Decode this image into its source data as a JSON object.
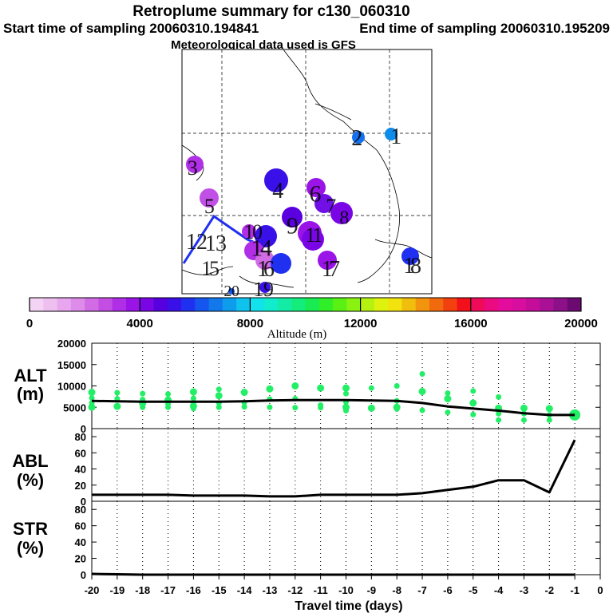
{
  "header": {
    "title": "Retroplume summary for c130_060310",
    "start_label": "Start time of sampling 20060310.194841",
    "end_label": "End time of sampling 20060310.195209",
    "met_label": "Meteorological data used is GFS"
  },
  "colorbar": {
    "colors": [
      "#f4d4f4",
      "#eec0f0",
      "#e7a6ee",
      "#de8ce9",
      "#d26ce5",
      "#c44ee3",
      "#b02ee5",
      "#9a14e8",
      "#7a06e6",
      "#5600e0",
      "#3a10e8",
      "#2030f0",
      "#1456ee",
      "#1278ec",
      "#0e9cec",
      "#10c2ee",
      "#12e2ec",
      "#10eccc",
      "#12eca6",
      "#14ec7c",
      "#18ec52",
      "#30ee28",
      "#5af014",
      "#8af210",
      "#b6f210",
      "#def20e",
      "#f2e20e",
      "#f2be0e",
      "#f2940e",
      "#f26a0e",
      "#f2400e",
      "#f2101a",
      "#f00a5a",
      "#ec0a80",
      "#e40c9c",
      "#d80e9e",
      "#c40e9a",
      "#aa1096",
      "#8c1088",
      "#6c0a72"
    ],
    "ticks": [
      "0",
      "4000",
      "8000",
      "12000",
      "16000",
      "20000"
    ],
    "label": "Altitude (m)"
  },
  "map": {
    "cluster_labels": [
      "1",
      "2",
      "3",
      "4",
      "5",
      "6",
      "7",
      "8",
      "9",
      "10",
      "11",
      "12",
      "13",
      "14",
      "15",
      "16",
      "17",
      "18",
      "19",
      "20"
    ],
    "points": [
      {
        "label": "8",
        "color": "#0e8cec"
      },
      {
        "label": "9",
        "color": "#1470ee"
      },
      {
        "label": "5",
        "color": "#b030e6"
      },
      {
        "label": "4",
        "color": "#3a10e8"
      },
      {
        "label": "4",
        "color": "#c050e6"
      },
      {
        "label": "5",
        "color": "#9a14e8"
      },
      {
        "label": "10",
        "color": "#7010e6"
      },
      {
        "label": "7",
        "color": "#7a06e6"
      },
      {
        "label": "3",
        "color": "#5a00e0"
      },
      {
        "label": "6",
        "color": "#b02ee5"
      },
      {
        "label": "8",
        "color": "#9a14e8"
      },
      {
        "label": "5",
        "color": "#7a06e6"
      },
      {
        "label": "3",
        "color": "#3a10e8"
      },
      {
        "label": "6",
        "color": "#b02ee5"
      },
      {
        "label": "3",
        "color": "#d26ce5"
      },
      {
        "label": "11",
        "color": "#2030f0"
      },
      {
        "label": "12",
        "color": "#9a14e8"
      },
      {
        "label": "14",
        "color": "#2030f0"
      },
      {
        "label": "2",
        "color": "#3a10e8"
      },
      {
        "label": "2",
        "color": "#1456ee"
      }
    ]
  },
  "axes": {
    "alt_label_line1": "ALT",
    "alt_label_line2": "(m)",
    "abl_label_line1": "ABL",
    "abl_label_line2": "(%)",
    "str_label_line1": "STR",
    "str_label_line2": "(%)",
    "xlabel": "Travel time (days)",
    "xticks": [
      "-20",
      "-19",
      "-18",
      "-17",
      "-16",
      "-15",
      "-14",
      "-13",
      "-12",
      "-11",
      "-10",
      "-9",
      "-8",
      "-7",
      "-6",
      "-5",
      "-4",
      "-3",
      "-2",
      "-1",
      "0"
    ],
    "alt_yticks": [
      "20000",
      "15000",
      "10000",
      "5000",
      "0"
    ],
    "pct_yticks": [
      "80",
      "60",
      "40",
      "20",
      "0"
    ]
  },
  "chart_data": [
    {
      "type": "line",
      "title": "ALT",
      "xlabel": "Travel time (days)",
      "ylabel": "ALT (m)",
      "xlim": [
        -20,
        0
      ],
      "ylim": [
        0,
        20000
      ],
      "x": [
        -20,
        -19,
        -18,
        -17,
        -16,
        -15,
        -14,
        -13,
        -12,
        -11,
        -10,
        -9,
        -8,
        -7,
        -6,
        -5,
        -4,
        -3,
        -2,
        -1
      ],
      "series": [
        {
          "name": "mean altitude",
          "values": [
            6500,
            6400,
            6300,
            6300,
            6300,
            6300,
            6400,
            6600,
            6700,
            6700,
            6700,
            6600,
            6500,
            6000,
            5200,
            4700,
            4200,
            3600,
            3200,
            3200
          ]
        }
      ],
      "scatter": [
        {
          "x": -20,
          "y": 8500
        },
        {
          "x": -20,
          "y": 7200
        },
        {
          "x": -20,
          "y": 6000
        },
        {
          "x": -20,
          "y": 5000
        },
        {
          "x": -19,
          "y": 8400
        },
        {
          "x": -19,
          "y": 7000
        },
        {
          "x": -19,
          "y": 5200
        },
        {
          "x": -18,
          "y": 8200
        },
        {
          "x": -18,
          "y": 6800
        },
        {
          "x": -18,
          "y": 5900
        },
        {
          "x": -18,
          "y": 5000
        },
        {
          "x": -17,
          "y": 8100
        },
        {
          "x": -17,
          "y": 6700
        },
        {
          "x": -17,
          "y": 5800
        },
        {
          "x": -17,
          "y": 5000
        },
        {
          "x": -16,
          "y": 8600
        },
        {
          "x": -16,
          "y": 7100
        },
        {
          "x": -16,
          "y": 6100
        },
        {
          "x": -16,
          "y": 5300
        },
        {
          "x": -16,
          "y": 4700
        },
        {
          "x": -15,
          "y": 9200
        },
        {
          "x": -15,
          "y": 7700
        },
        {
          "x": -15,
          "y": 6000
        },
        {
          "x": -15,
          "y": 5000
        },
        {
          "x": -14,
          "y": 8500
        },
        {
          "x": -14,
          "y": 6100
        },
        {
          "x": -14,
          "y": 5100
        },
        {
          "x": -13,
          "y": 9300
        },
        {
          "x": -13,
          "y": 6900
        },
        {
          "x": -13,
          "y": 5000
        },
        {
          "x": -12,
          "y": 10000
        },
        {
          "x": -12,
          "y": 7000
        },
        {
          "x": -12,
          "y": 4900
        },
        {
          "x": -11,
          "y": 9500
        },
        {
          "x": -11,
          "y": 5500
        },
        {
          "x": -11,
          "y": 4900
        },
        {
          "x": -10,
          "y": 9500
        },
        {
          "x": -10,
          "y": 8200
        },
        {
          "x": -10,
          "y": 6200
        },
        {
          "x": -10,
          "y": 5000
        },
        {
          "x": -10,
          "y": 4200
        },
        {
          "x": -9,
          "y": 9500
        },
        {
          "x": -9,
          "y": 4800
        },
        {
          "x": -8,
          "y": 10000
        },
        {
          "x": -8,
          "y": 6500
        },
        {
          "x": -8,
          "y": 5000
        },
        {
          "x": -8,
          "y": 4600
        },
        {
          "x": -7,
          "y": 12800
        },
        {
          "x": -7,
          "y": 8700
        },
        {
          "x": -7,
          "y": 4300
        },
        {
          "x": -6,
          "y": 8300
        },
        {
          "x": -6,
          "y": 7000
        },
        {
          "x": -6,
          "y": 3800
        },
        {
          "x": -5,
          "y": 8800
        },
        {
          "x": -5,
          "y": 6000
        },
        {
          "x": -5,
          "y": 3300
        },
        {
          "x": -4,
          "y": 7400
        },
        {
          "x": -4,
          "y": 4800
        },
        {
          "x": -4,
          "y": 3500
        },
        {
          "x": -4,
          "y": 2000
        },
        {
          "x": -3,
          "y": 4800
        },
        {
          "x": -3,
          "y": 3500
        },
        {
          "x": -3,
          "y": 2000
        },
        {
          "x": -2,
          "y": 4700
        },
        {
          "x": -2,
          "y": 3200
        },
        {
          "x": -2,
          "y": 2000
        },
        {
          "x": -1,
          "y": 3200
        }
      ]
    },
    {
      "type": "line",
      "title": "ABL",
      "ylabel": "ABL (%)",
      "xlim": [
        -20,
        0
      ],
      "ylim": [
        0,
        90
      ],
      "x": [
        -20,
        -19,
        -18,
        -17,
        -16,
        -15,
        -14,
        -13,
        -12,
        -11,
        -10,
        -9,
        -8,
        -7,
        -6,
        -5,
        -4,
        -3,
        -2,
        -1
      ],
      "series": [
        {
          "name": "ABL fraction",
          "values": [
            8,
            8,
            8,
            8,
            7,
            7,
            7,
            6,
            6,
            8,
            8,
            8,
            8,
            10,
            14,
            18,
            26,
            26,
            11,
            76
          ]
        }
      ]
    },
    {
      "type": "line",
      "title": "STR",
      "ylabel": "STR (%)",
      "xlim": [
        -20,
        0
      ],
      "ylim": [
        0,
        90
      ],
      "x": [
        -20,
        -19,
        -18,
        -17,
        -16,
        -15,
        -14,
        -13,
        -12,
        -11,
        -10,
        -9,
        -8,
        -7,
        -6,
        -5,
        -4,
        -3,
        -2,
        -1
      ],
      "series": [
        {
          "name": "STR fraction",
          "values": [
            1,
            0.5,
            0,
            0,
            0,
            0,
            0,
            0,
            0,
            0,
            0,
            0,
            0,
            0,
            0,
            0,
            0,
            0,
            0,
            0
          ]
        }
      ]
    }
  ]
}
